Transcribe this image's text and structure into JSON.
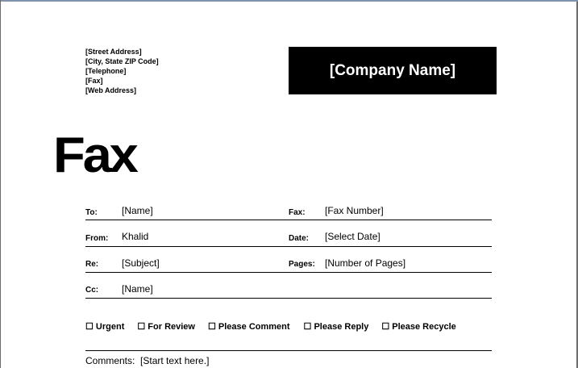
{
  "sender": {
    "lines": [
      "[Street Address]",
      "[City, State  ZIP Code]",
      "[Telephone]",
      "[Fax]",
      "[Web Address]"
    ]
  },
  "company_name": "[Company Name]",
  "title": "Fax",
  "fields": {
    "to": {
      "label": "To:",
      "value": "[Name]"
    },
    "fax": {
      "label": "Fax:",
      "value": "[Fax Number]"
    },
    "from": {
      "label": "From:",
      "value": "Khalid"
    },
    "date": {
      "label": "Date:",
      "value": "[Select Date]"
    },
    "re": {
      "label": "Re:",
      "value": "[Subject]"
    },
    "pages": {
      "label": "Pages:",
      "value": "[Number of Pages]"
    },
    "cc": {
      "label": "Cc:",
      "value": "[Name]"
    }
  },
  "checkboxes": [
    "☐ Urgent",
    "☐ For Review",
    "☐ Please Comment",
    "☐ Please Reply",
    "☐ Please Recycle"
  ],
  "comments": {
    "label": "Comments:",
    "value": "[Start text here.]"
  }
}
